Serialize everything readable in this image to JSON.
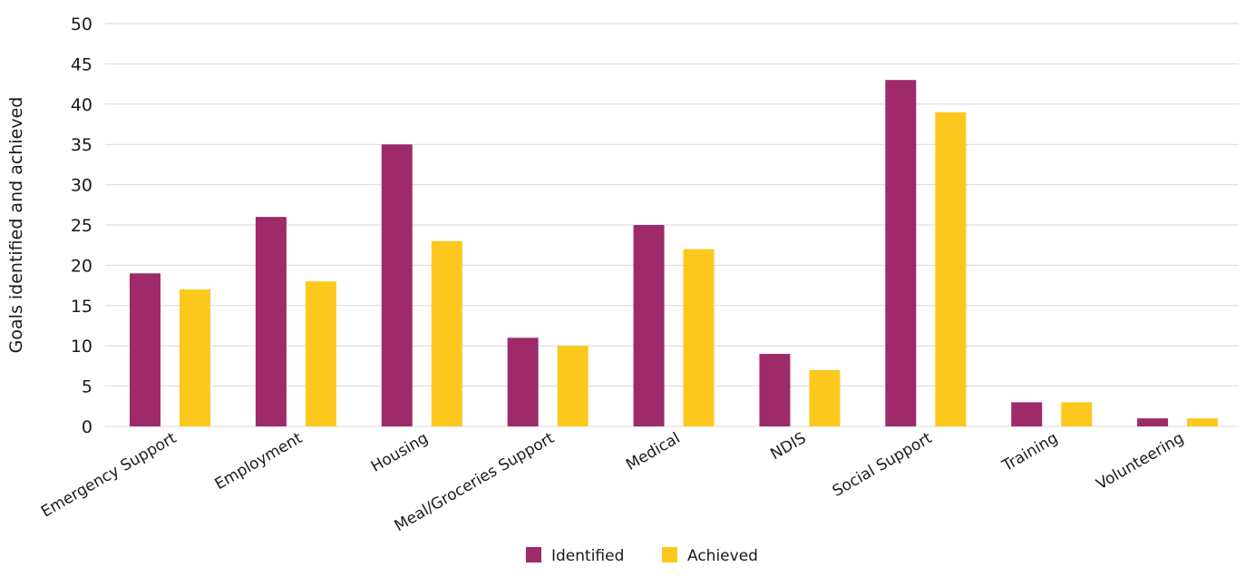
{
  "chart_data": {
    "type": "bar",
    "categories": [
      "Emergency Support",
      "Employment",
      "Housing",
      "Meal/Groceries Support",
      "Medical",
      "NDIS",
      "Social Support",
      "Training",
      "Volunteering"
    ],
    "series": [
      {
        "name": "Identified",
        "color": "#9e2a6a",
        "values": [
          19,
          26,
          35,
          11,
          25,
          9,
          43,
          3,
          1
        ]
      },
      {
        "name": "Achieved",
        "color": "#fdc81e",
        "values": [
          17,
          18,
          23,
          10,
          22,
          7,
          39,
          3,
          1
        ]
      }
    ],
    "title": "",
    "xlabel": "",
    "ylabel": "Goals identified and achieved",
    "ylim": [
      0,
      50
    ],
    "yticks": [
      0,
      5,
      10,
      15,
      20,
      25,
      30,
      35,
      40,
      45,
      50
    ],
    "grid": true,
    "legend": "bottom-center"
  }
}
